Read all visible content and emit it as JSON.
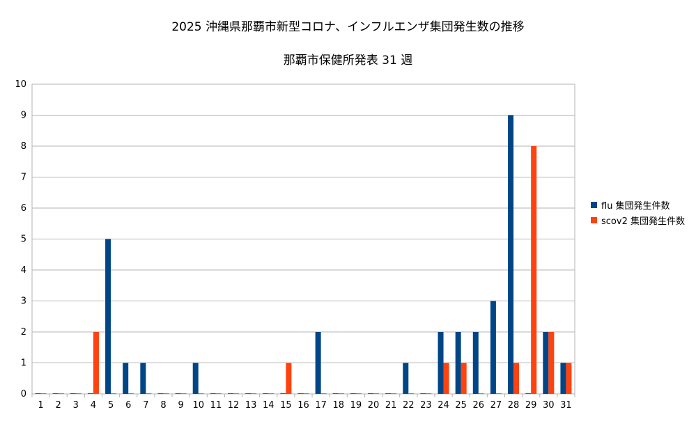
{
  "title": "2025 沖縄県那覇市新型コロナ、インフルエンザ集団発生数の推移",
  "subtitle": "那覇市保健所発表 31 週",
  "colors": {
    "flu": "#004586",
    "scov2": "#ff420e",
    "grid": "#b3b3b3"
  },
  "chart_data": {
    "type": "bar",
    "title": "2025 沖縄県那覇市新型コロナ、インフルエンザ集団発生数の推移",
    "subtitle": "那覇市保健所発表 31 週",
    "xlabel": "",
    "ylabel": "",
    "ylim": [
      0,
      10
    ],
    "yticks": [
      "0",
      "1",
      "2",
      "3",
      "4",
      "5",
      "6",
      "7",
      "8",
      "9",
      "10"
    ],
    "grid": true,
    "legend_position": "right",
    "categories": [
      "1",
      "2",
      "3",
      "4",
      "5",
      "6",
      "7",
      "8",
      "9",
      "10",
      "11",
      "12",
      "13",
      "14",
      "15",
      "16",
      "17",
      "18",
      "19",
      "20",
      "21",
      "22",
      "23",
      "24",
      "25",
      "26",
      "27",
      "28",
      "29",
      "30",
      "31"
    ],
    "series": [
      {
        "name": "flu 集団発生件数",
        "color": "#004586",
        "values": [
          0,
          0,
          0,
          0,
          5,
          1,
          1,
          0,
          0,
          1,
          0,
          0,
          0,
          0,
          0,
          0,
          2,
          0,
          0,
          0,
          0,
          1,
          0,
          2,
          2,
          2,
          3,
          9,
          0,
          2,
          1
        ]
      },
      {
        "name": "scov2 集団発生件数",
        "color": "#ff420e",
        "values": [
          0,
          0,
          0,
          2,
          0,
          0,
          0,
          0,
          0,
          0,
          0,
          0,
          0,
          0,
          1,
          0,
          0,
          0,
          0,
          0,
          0,
          0,
          0,
          1,
          1,
          0,
          0,
          1,
          8,
          2,
          1
        ]
      }
    ]
  }
}
